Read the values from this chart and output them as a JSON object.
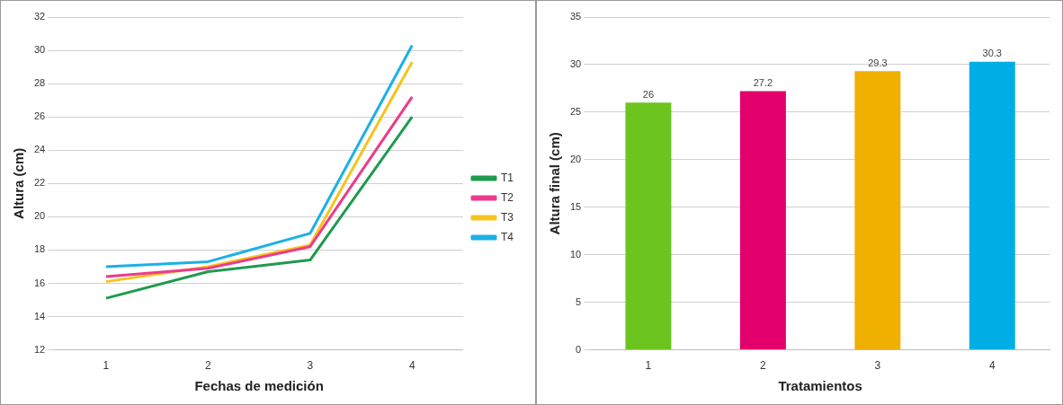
{
  "chart_data": [
    {
      "type": "line",
      "xlabel": "Fechas de medición",
      "ylabel": "Altura (cm)",
      "categories": [
        "1",
        "2",
        "3",
        "4"
      ],
      "ylim": [
        12,
        32
      ],
      "yticks": [
        12,
        14,
        16,
        18,
        20,
        22,
        24,
        26,
        28,
        30,
        32
      ],
      "grid": "y",
      "legend": "right",
      "marker": "none",
      "line_style": "solid",
      "series": [
        {
          "name": "T1",
          "color": "#1f9a4e",
          "values": [
            15.1,
            16.7,
            17.4,
            26.0
          ]
        },
        {
          "name": "T2",
          "color": "#ec3b8c",
          "values": [
            16.4,
            16.9,
            18.2,
            27.2
          ]
        },
        {
          "name": "T3",
          "color": "#f7c31c",
          "values": [
            16.1,
            17.0,
            18.3,
            29.3
          ]
        },
        {
          "name": "T4",
          "color": "#1ab1e6",
          "values": [
            17.0,
            17.3,
            19.0,
            30.3
          ]
        }
      ]
    },
    {
      "type": "bar",
      "xlabel": "Tratamientos",
      "ylabel": "Altura final (cm)",
      "categories": [
        "1",
        "2",
        "3",
        "4"
      ],
      "values": [
        26,
        27.2,
        29.3,
        30.3
      ],
      "colors": [
        "#6cc41e",
        "#e4006c",
        "#f0b000",
        "#00aee6"
      ],
      "ylim": [
        0,
        35
      ],
      "yticks": [
        0,
        5,
        10,
        15,
        20,
        25,
        30,
        35
      ],
      "grid": "y",
      "legend": false,
      "data_labels": true
    }
  ]
}
